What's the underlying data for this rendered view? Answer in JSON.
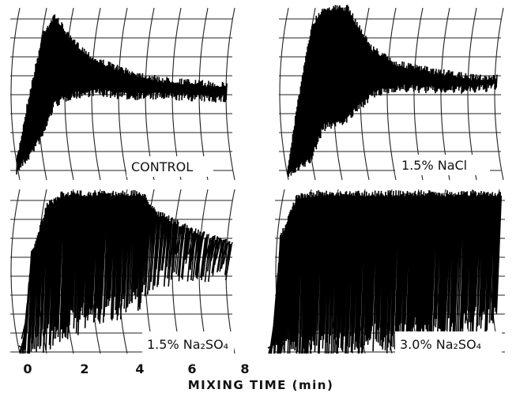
{
  "panels": [
    {
      "label": "CONTROL"
    },
    {
      "label": "1.5% NaCl"
    },
    {
      "label": "1.5% Na₂SO₄"
    },
    {
      "label": "3.0% Na₂SO₄"
    }
  ],
  "x_axis": {
    "ticks": [
      "0",
      "2",
      "4",
      "6",
      "8"
    ],
    "label": "MIXING TIME (min)"
  }
}
